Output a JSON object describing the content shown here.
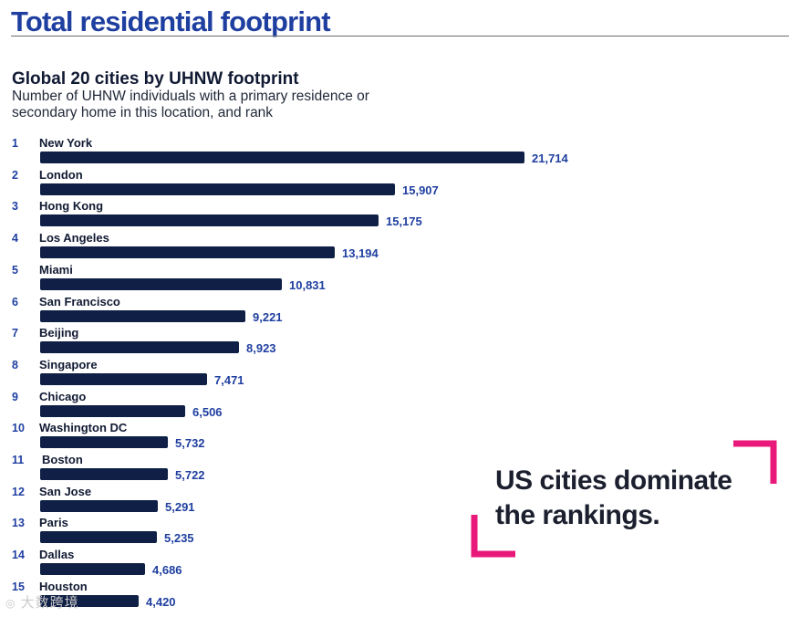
{
  "page": {
    "title": "Total residential footprint"
  },
  "chart_data": {
    "type": "bar",
    "orientation": "horizontal",
    "title": "Global 20 cities by UHNW footprint",
    "subtitle": "Number of UHNW individuals with a primary residence or secondary home in this location, and rank",
    "xlabel": "",
    "ylabel": "",
    "categories": [
      "New York",
      "London",
      "Hong Kong",
      "Los Angeles",
      "Miami",
      "San Francisco",
      "Beijing",
      "Singapore",
      "Chicago",
      "Washington DC",
      "Boston",
      "San Jose",
      "Paris",
      "Dallas",
      "Houston"
    ],
    "ranks": [
      "1",
      "2",
      "3",
      "4",
      "5",
      "6",
      "7",
      "8",
      "9",
      "10",
      "11",
      "12",
      "13",
      "14",
      "15"
    ],
    "values": [
      21714,
      15907,
      15175,
      13194,
      10831,
      9221,
      8923,
      7471,
      6506,
      5732,
      5722,
      5291,
      5235,
      4686,
      4420
    ],
    "value_labels": [
      "21,714",
      "15,907",
      "15,175",
      "13,194",
      "10,831",
      "9,221",
      "8,923",
      "7,471",
      "6,506",
      "5,732",
      "5,722",
      "5,291",
      "5,235",
      "4,686",
      "4,420"
    ],
    "xlim": [
      0,
      21714
    ]
  },
  "callout": {
    "line1": "US cities dominate",
    "line2": "the rankings."
  },
  "watermark": {
    "text": "大数跨境"
  },
  "colors": {
    "bar": "#0f1f45",
    "accent_blue": "#1f3fa0",
    "bracket_pink": "#e8197a"
  }
}
